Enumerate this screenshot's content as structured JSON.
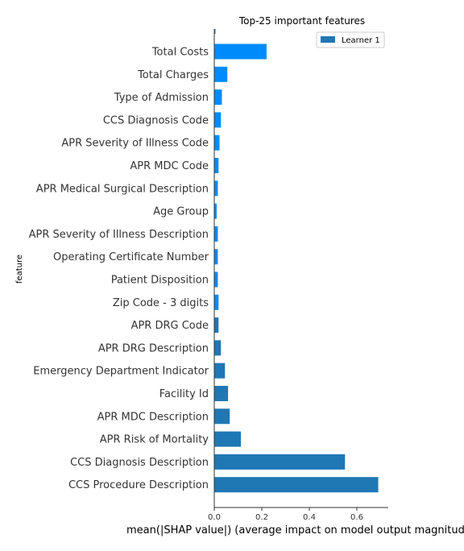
{
  "chart_data": {
    "type": "bar",
    "orientation": "horizontal",
    "title": "Top-25 important features",
    "xlabel": "mean(|SHAP value|) (average impact on model output magnitude)",
    "ylabel": "feature",
    "xlim": [
      0,
      0.73
    ],
    "xticks": [
      0.0,
      0.2,
      0.4,
      0.6
    ],
    "xtick_labels": [
      "0.0",
      "0.2",
      "0.4",
      "0.6"
    ],
    "legend": {
      "placement": "top-right",
      "entries": [
        "Learner 1"
      ]
    },
    "categories": [
      "Total Costs",
      "Total Charges",
      "Type of Admission",
      "CCS Diagnosis Code",
      "APR Severity of Illness Code",
      "APR MDC Code",
      "APR Medical Surgical Description",
      "Age Group",
      "APR Severity of Illness Description",
      "Operating Certificate Number",
      "Patient Disposition",
      "Zip Code - 3 digits",
      "APR DRG Code",
      "APR DRG Description",
      "Emergency Department Indicator",
      "Facility Id",
      "APR MDC Description",
      "APR Risk of Mortality",
      "CCS Diagnosis Description",
      "CCS Procedure Description"
    ],
    "series": [
      {
        "name": "Learner 1",
        "color": "#1f77b4",
        "values": [
          0.0,
          0.0,
          0.0,
          0.0,
          0.0,
          0.0,
          0.0,
          0.0,
          0.0,
          0.0,
          0.0,
          0.0,
          0.018,
          0.028,
          0.045,
          0.058,
          0.065,
          0.112,
          0.55,
          0.69
        ]
      },
      {
        "name": "",
        "color": "#008bfb",
        "values": [
          0.22,
          0.055,
          0.032,
          0.028,
          0.022,
          0.018,
          0.015,
          0.01,
          0.015,
          0.015,
          0.015,
          0.018,
          0.0,
          0.0,
          0.0,
          0.0,
          0.0,
          0.0,
          0.0,
          0.0
        ]
      }
    ],
    "top_edge_bar": {
      "value": 0.005,
      "color": "#1f77b4"
    }
  }
}
